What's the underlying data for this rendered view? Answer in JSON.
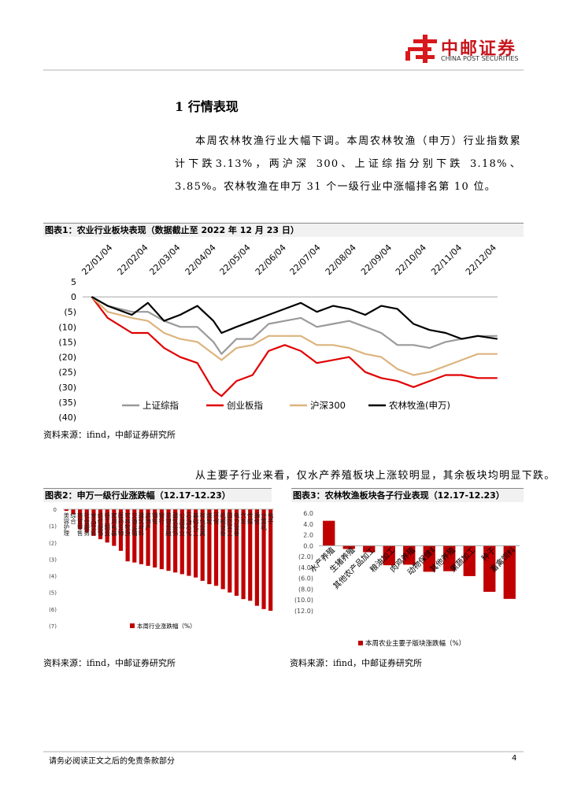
{
  "header": {
    "logo_cn": "中邮证券",
    "logo_en": "CHINA POST SECURITIES"
  },
  "section_title": "1 行情表现",
  "paragraph1": "本周农林牧渔行业大幅下调。本周农林牧渔（申万）行业指数累计下跌3.13%，两沪深 300、上证综指分别下跌 3.18%、3.85%。农林牧渔在申万 31 个一级行业中涨幅排名第 10 位。",
  "figure1": {
    "caption": "图表1：农业行业板块表现（数据截止至 2022 年 12 月 23 日）",
    "chart_data": {
      "type": "line",
      "x": [
        "22/01/04",
        "22/01/18",
        "22/02/08",
        "22/02/22",
        "22/03/08",
        "22/03/22",
        "22/04/06",
        "22/04/20",
        "22/04/27",
        "22/05/10",
        "22/05/24",
        "22/06/07",
        "22/06/21",
        "22/07/05",
        "22/07/19",
        "22/08/02",
        "22/08/16",
        "22/08/30",
        "22/09/13",
        "22/09/27",
        "22/10/11",
        "22/10/25",
        "22/11/08",
        "22/11/22",
        "22/12/06",
        "22/12/23"
      ],
      "xticks": [
        "22/01/04",
        "22/02/04",
        "22/03/04",
        "22/04/04",
        "22/05/04",
        "22/06/04",
        "22/07/04",
        "22/08/04",
        "22/09/04",
        "22/10/04",
        "22/11/04",
        "22/12/04"
      ],
      "ylim": [
        -40,
        5
      ],
      "yticks": [
        5,
        0,
        {
          "value": -5,
          "label": "(5)"
        },
        {
          "value": -10,
          "label": "(10)"
        },
        {
          "value": -15,
          "label": "(15)"
        },
        {
          "value": -20,
          "label": "(20)"
        },
        {
          "value": -25,
          "label": "(25)"
        },
        {
          "value": -30,
          "label": "(30)"
        },
        {
          "value": -35,
          "label": "(35)"
        },
        {
          "value": -40,
          "label": "(40)"
        }
      ],
      "legend": "bottom",
      "series": [
        {
          "name": "上证综指",
          "color": "#9a9a9a",
          "values": [
            0,
            -3,
            -5,
            -5,
            -8,
            -10,
            -10,
            -15,
            -19,
            -14,
            -14,
            -9,
            -8,
            -7,
            -10,
            -9,
            -8,
            -10,
            -12,
            -16,
            -16,
            -17,
            -15,
            -14,
            -13,
            -13
          ]
        },
        {
          "name": "创业板指",
          "color": "#e00000",
          "values": [
            0,
            -7,
            -12,
            -12,
            -17,
            -20,
            -22,
            -31,
            -33,
            -28,
            -26,
            -18,
            -16,
            -18,
            -22,
            -21,
            -20,
            -25,
            -27,
            -28,
            -30,
            -28,
            -26,
            -26,
            -27,
            -27
          ]
        },
        {
          "name": "沪深300",
          "color": "#dcb47e",
          "values": [
            0,
            -5,
            -7,
            -8,
            -12,
            -14,
            -15,
            -19,
            -21,
            -17,
            -16,
            -13,
            -13,
            -13,
            -16,
            -16,
            -17,
            -19,
            -20,
            -24,
            -26,
            -25,
            -23,
            -21,
            -19,
            -19
          ]
        },
        {
          "name": "农林牧渔(申万)",
          "color": "#000000",
          "values": [
            0,
            -3,
            -6,
            -2,
            -8,
            -6,
            -3,
            -8,
            -12,
            -10,
            -8,
            -6,
            -4,
            -2,
            -5,
            -3,
            -4,
            -6,
            -3,
            -4,
            -9,
            -11,
            -12,
            -14,
            -13,
            -14
          ]
        }
      ]
    },
    "source": "资料来源：ifind，中邮证券研究所"
  },
  "paragraph2": "从主要子行业来看，仅水产养殖板块上涨较明显，其余板块均明显下跌。",
  "figure2": {
    "caption": "图表2：申万一级行业涨跌幅（12.17-12.23）",
    "chart_data": {
      "type": "bar",
      "categories": [
        "美容护理",
        "综合",
        "商贸零售",
        "社会服务",
        "食品饮料",
        "纺织服饰",
        "轻工制造",
        "家用电器",
        "医药生物",
        "农林牧渔",
        "交通运输",
        "建筑材料",
        "房地产",
        "钢铁",
        "银行",
        "非银金融",
        "建筑装饰",
        "公用事业",
        "石油石化",
        "基础化工",
        "有色金属",
        "煤炭",
        "环保",
        "机械设备",
        "国防军工",
        "电力设备",
        "汽车",
        "传媒",
        "通信",
        "计算机",
        "电子"
      ],
      "ylim": [
        -7,
        0
      ],
      "yticks": [
        0,
        {
          "value": -1,
          "label": "(1)"
        },
        {
          "value": -2,
          "label": "(2)"
        },
        {
          "value": -3,
          "label": "(3)"
        },
        {
          "value": -4,
          "label": "(4)"
        },
        {
          "value": -5,
          "label": "(5)"
        },
        {
          "value": -6,
          "label": "(6)"
        },
        {
          "value": -7,
          "label": "(7)"
        }
      ],
      "series": [
        {
          "name": "本周行业涨跌幅（%）",
          "color": "#c00000",
          "values": [
            -0.1,
            -0.3,
            -1.2,
            -1.4,
            -1.6,
            -1.8,
            -2.0,
            -2.2,
            -2.5,
            -3.13,
            -3.2,
            -3.3,
            -3.4,
            -3.5,
            -3.6,
            -3.7,
            -3.8,
            -3.9,
            -4.0,
            -4.1,
            -4.3,
            -4.5,
            -4.6,
            -4.8,
            -5.0,
            -5.2,
            -5.4,
            -5.5,
            -5.8,
            -6.0,
            -6.1
          ]
        }
      ]
    },
    "source": "资料来源：ifind，中邮证券研究所"
  },
  "figure3": {
    "caption": "图表3：农林牧渔板块各子行业表现（12.17-12.23）",
    "chart_data": {
      "type": "bar",
      "categories": [
        "水产养殖",
        "生猪养殖",
        "其他农产品加工",
        "粮油加工",
        "肉鸡养殖",
        "动物保健Ⅱ",
        "其他养殖",
        "果蔬加工",
        "种子",
        "畜禽饲料"
      ],
      "ylim": [
        -12,
        6
      ],
      "yticks": [
        {
          "value": 6,
          "label": "6.0"
        },
        {
          "value": 4,
          "label": "4.0"
        },
        {
          "value": 2,
          "label": "2.0"
        },
        {
          "value": 0,
          "label": "0.0"
        },
        {
          "value": -2,
          "label": "(2.0)"
        },
        {
          "value": -4,
          "label": "(4.0)"
        },
        {
          "value": -6,
          "label": "(6.0)"
        },
        {
          "value": -8,
          "label": "(8.0)"
        },
        {
          "value": -10,
          "label": "(10.0)"
        },
        {
          "value": -12,
          "label": "(12.0)"
        }
      ],
      "series": [
        {
          "name": "本周农业主要子版块涨跌幅（%）",
          "color": "#c00000",
          "values": [
            4.6,
            -0.6,
            -1.2,
            -3.6,
            -3.5,
            -4.8,
            -4.7,
            -5.6,
            -8.5,
            -9.8
          ]
        }
      ]
    },
    "source": "资料来源：ifind，中邮证券研究所"
  },
  "footer": {
    "disclaimer": "请务必阅读正文之后的免责条款部分",
    "page": "4"
  }
}
